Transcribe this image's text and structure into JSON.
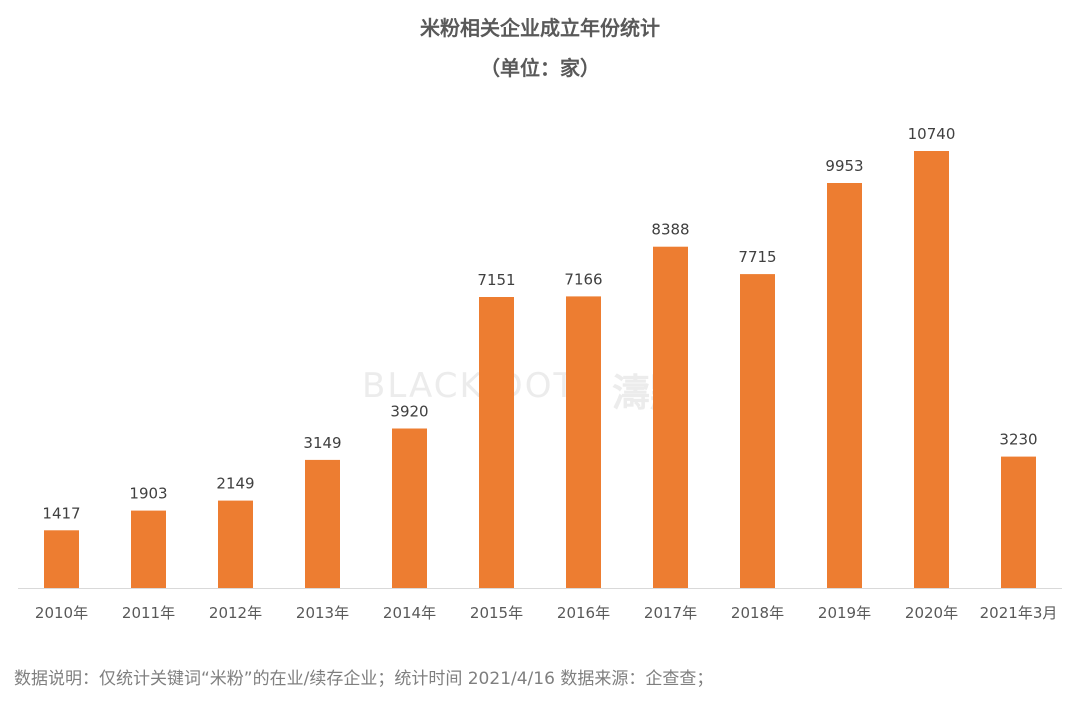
{
  "chart_data": {
    "type": "bar",
    "title": "米粉相关企业成立年份统计",
    "subtitle": "（单位：家）",
    "categories": [
      "2010年",
      "2011年",
      "2012年",
      "2013年",
      "2014年",
      "2015年",
      "2016年",
      "2017年",
      "2018年",
      "2019年",
      "2020年",
      "2021年3月"
    ],
    "values": [
      1417,
      1903,
      2149,
      3149,
      3920,
      7151,
      7166,
      8388,
      7715,
      9953,
      10740,
      3230
    ],
    "bar_color": "#ED7D31",
    "grid": false,
    "legend": "none"
  },
  "footnote": "数据说明：仅统计关键词“米粉”的在业/续存企业；统计时间  2021/4/16   数据来源：企查查；",
  "watermark": {
    "text": "BLACK DOTS",
    "seal": "濤點",
    "color": "#ececec"
  },
  "colors": {
    "text": "#595959",
    "axis": "#d9d9d9"
  }
}
